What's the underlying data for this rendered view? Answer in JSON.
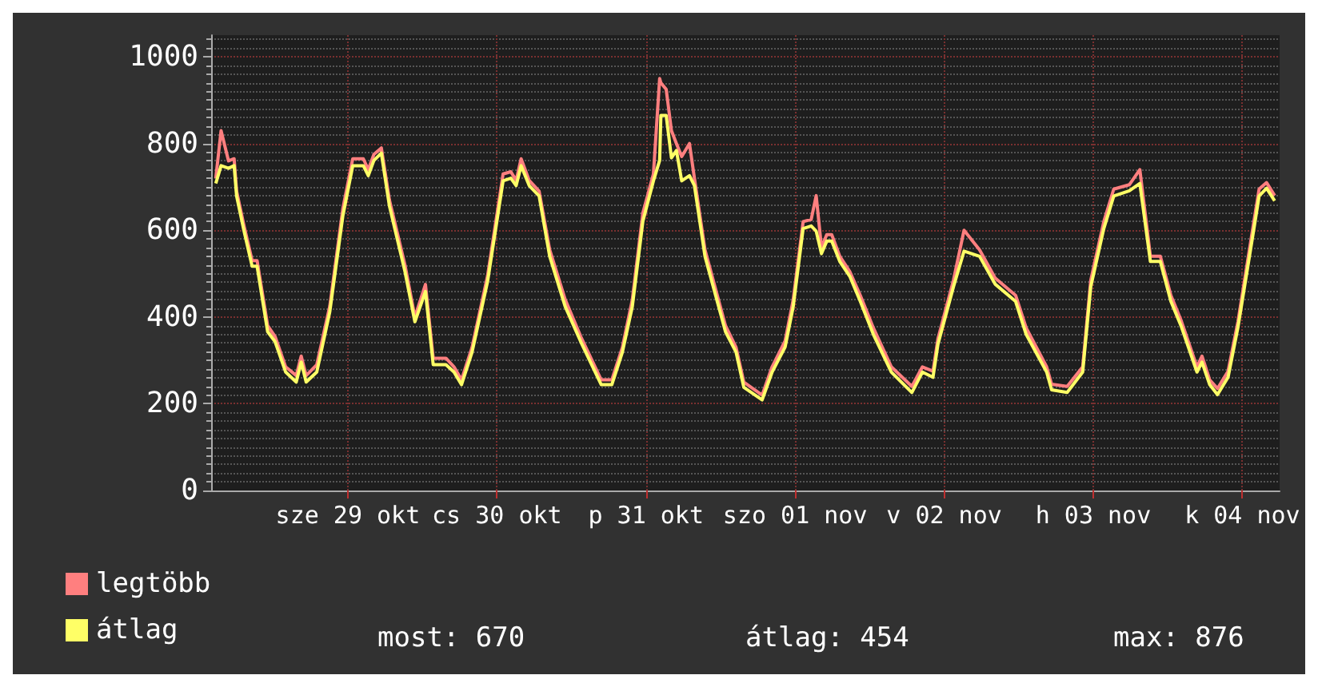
{
  "chart_data": {
    "type": "line",
    "xlim": [
      "--10-28T02:00",
      "--11-04T06:00"
    ],
    "ylim": [
      0,
      1050
    ],
    "yticks": [
      0,
      200,
      400,
      600,
      800,
      1000
    ],
    "xticks": [
      {
        "value": "--10-29",
        "label": "sze 29 okt"
      },
      {
        "value": "--10-30",
        "label": "cs 30 okt"
      },
      {
        "value": "--10-31",
        "label": "p 31 okt"
      },
      {
        "value": "--11-01",
        "label": "szo 01 nov"
      },
      {
        "value": "--11-02",
        "label": "v 02 nov"
      },
      {
        "value": "--11-03",
        "label": "h 03 nov"
      },
      {
        "value": "--11-04",
        "label": "k 04 nov"
      }
    ],
    "x": [
      "--10-28T02:45",
      "--10-28T03:36",
      "--10-28T04:48",
      "--10-28T05:42",
      "--10-28T06:06",
      "--10-28T07:18",
      "--10-28T08:36",
      "--10-28T09:24",
      "--10-28T11:06",
      "--10-28T12:18",
      "--10-28T14:00",
      "--10-28T15:42",
      "--10-28T16:30",
      "--10-28T17:18",
      "--10-28T19:00",
      "--10-28T21:06",
      "--10-28T23:12",
      "--10-29T00:48",
      "--10-29T02:30",
      "--10-29T03:18",
      "--10-29T04:12",
      "--10-29T05:24",
      "--10-29T06:42",
      "--10-29T09:12",
      "--10-29T10:48",
      "--10-29T12:30",
      "--10-29T13:45",
      "--10-29T15:48",
      "--10-29T17:06",
      "--10-29T18:18",
      "--10-29T20:00",
      "--10-29T22:30",
      "--10-30T01:00",
      "--10-30T02:15",
      "--10-30T03:06",
      "--10-30T03:54",
      "--10-30T05:12",
      "--10-30T06:48",
      "--10-30T08:30",
      "--10-30T11:00",
      "--10-30T13:30",
      "--10-30T16:48",
      "--10-30T18:30",
      "--10-30T20:12",
      "--10-30T21:48",
      "--10-30T23:30",
      "--10-31T01:12",
      "--10-31T02:12",
      "--10-31T02:24",
      "--10-31T03:15",
      "--10-31T04:06",
      "--10-31T04:54",
      "--10-31T05:45",
      "--10-31T07:00",
      "--10-31T07:48",
      "--10-31T09:30",
      "--10-31T12:48",
      "--10-31T14:30",
      "--10-31T15:45",
      "--10-31T18:42",
      "--10-31T20:18",
      "--10-31T22:24",
      "--10-31T23:42",
      "--11-01T01:18",
      "--11-01T02:36",
      "--11-01T03:24",
      "--11-01T04:15",
      "--11-01T05:06",
      "--11-01T05:54",
      "--11-01T07:12",
      "--11-01T08:48",
      "--11-01T10:30",
      "--11-01T12:36",
      "--11-01T15:30",
      "--11-01T18:48",
      "--11-01T20:30",
      "--11-01T22:12",
      "--11-01T23:00",
      "--11-02T01:30",
      "--11-02T03:12",
      "--11-02T05:42",
      "--11-02T08:12",
      "--11-02T11:30",
      "--11-02T13:12",
      "--11-02T16:30",
      "--11-02T17:18",
      "--11-02T19:48",
      "--11-02T22:18",
      "--11-02T23:36",
      "--11-03T01:42",
      "--11-03T03:18",
      "--11-03T05:48",
      "--11-03T07:30",
      "--11-03T09:12",
      "--11-03T10:48",
      "--11-03T12:30",
      "--11-03T14:12",
      "--11-03T16:42",
      "--11-03T17:30",
      "--11-03T18:45",
      "--11-03T20:00",
      "--11-03T21:42",
      "--11-03T23:18",
      "--11-04T01:48",
      "--11-04T02:42",
      "--11-04T03:54",
      "--11-04T05:12"
    ],
    "series": [
      {
        "name": "legtöbb",
        "color": "#ff7f7f",
        "values": [
          720,
          830,
          760,
          765,
          690,
          610,
          530,
          530,
          380,
          355,
          285,
          265,
          310,
          265,
          290,
          425,
          650,
          765,
          765,
          740,
          775,
          790,
          670,
          520,
          400,
          475,
          305,
          305,
          285,
          255,
          330,
          495,
          730,
          735,
          715,
          765,
          715,
          690,
          555,
          440,
          355,
          255,
          255,
          330,
          440,
          640,
          730,
          950,
          940,
          925,
          830,
          800,
          770,
          800,
          720,
          555,
          380,
          330,
          250,
          220,
          285,
          345,
          440,
          620,
          625,
          680,
          560,
          590,
          590,
          540,
          505,
          450,
          375,
          285,
          240,
          285,
          275,
          350,
          485,
          600,
          555,
          490,
          450,
          375,
          285,
          245,
          240,
          285,
          485,
          620,
          695,
          705,
          740,
          540,
          540,
          450,
          390,
          285,
          310,
          255,
          235,
          275,
          390,
          615,
          695,
          710,
          680
        ]
      },
      {
        "name": "átlag",
        "color": "#ffff66",
        "values": [
          708,
          749,
          743,
          749,
          679,
          598,
          517,
          517,
          366,
          343,
          273,
          250,
          296,
          250,
          273,
          412,
          633,
          749,
          749,
          726,
          761,
          778,
          656,
          505,
          389,
          459,
          290,
          290,
          273,
          244,
          319,
          482,
          714,
          720,
          703,
          749,
          703,
          679,
          540,
          424,
          343,
          244,
          244,
          319,
          424,
          621,
          714,
          761,
          865,
          865,
          767,
          784,
          714,
          726,
          703,
          540,
          366,
          319,
          238,
          209,
          273,
          331,
          424,
          604,
          610,
          598,
          546,
          575,
          575,
          528,
          494,
          436,
          360,
          273,
          226,
          273,
          261,
          337,
          470,
          552,
          540,
          476,
          436,
          360,
          273,
          232,
          226,
          273,
          470,
          604,
          679,
          691,
          708,
          528,
          528,
          436,
          377,
          273,
          296,
          244,
          221,
          261,
          377,
          598,
          679,
          697,
          668
        ]
      }
    ],
    "grid": true,
    "legend": "bottom left",
    "marker": "none",
    "line_style": "solid",
    "annotations": [
      "most: 670",
      "átlag: 454",
      "max: 876"
    ]
  }
}
